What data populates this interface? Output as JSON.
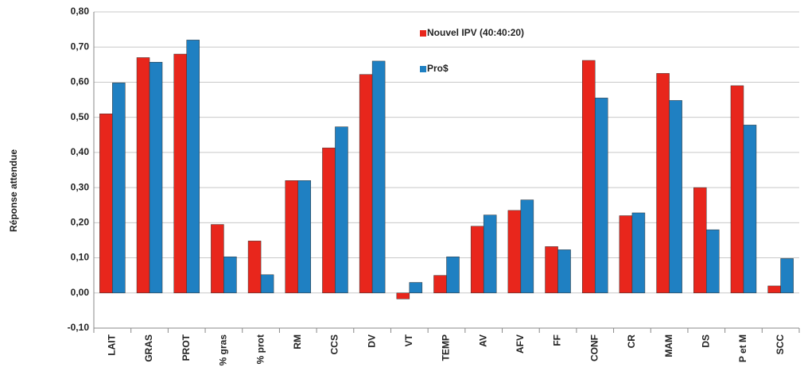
{
  "chart_data": {
    "type": "bar",
    "y_label": "Réponse attendue",
    "categories": [
      "LAIT",
      "GRAS",
      "PROT",
      "% gras",
      "% prot",
      "RM",
      "CCS",
      "DV",
      "VT",
      "TEMP",
      "AV",
      "AFV",
      "FF",
      "CONF",
      "CR",
      "MAM",
      "DS",
      "P et M",
      "SCC"
    ],
    "series": [
      {
        "name": "Nouvel IPV (40:40:20)",
        "color": "#e8261c",
        "values": [
          0.51,
          0.67,
          0.68,
          0.195,
          0.148,
          0.32,
          0.413,
          0.622,
          -0.017,
          0.05,
          0.19,
          0.235,
          0.132,
          0.662,
          0.22,
          0.625,
          0.3,
          0.59,
          0.02
        ]
      },
      {
        "name": "Pro$",
        "color": "#1f80c2",
        "values": [
          0.598,
          0.657,
          0.72,
          0.103,
          0.052,
          0.32,
          0.473,
          0.66,
          0.03,
          0.103,
          0.222,
          0.265,
          0.123,
          0.555,
          0.228,
          0.548,
          0.18,
          0.478,
          0.098
        ]
      }
    ],
    "ylim": [
      -0.1,
      0.8
    ],
    "yticks": [
      {
        "value": -0.1,
        "label": "-0,10"
      },
      {
        "value": 0,
        "label": "0,00"
      },
      {
        "value": 0.1,
        "label": "0,10"
      },
      {
        "value": 0.2,
        "label": "0,20"
      },
      {
        "value": 0.3,
        "label": "0,30"
      },
      {
        "value": 0.4,
        "label": "0,40"
      },
      {
        "value": 0.5,
        "label": "0,50"
      },
      {
        "value": 0.6,
        "label": "0,60"
      },
      {
        "value": 0.7,
        "label": "0,70"
      },
      {
        "value": 0.8,
        "label": "0,80"
      }
    ],
    "grid": true,
    "legend": "top-center"
  }
}
